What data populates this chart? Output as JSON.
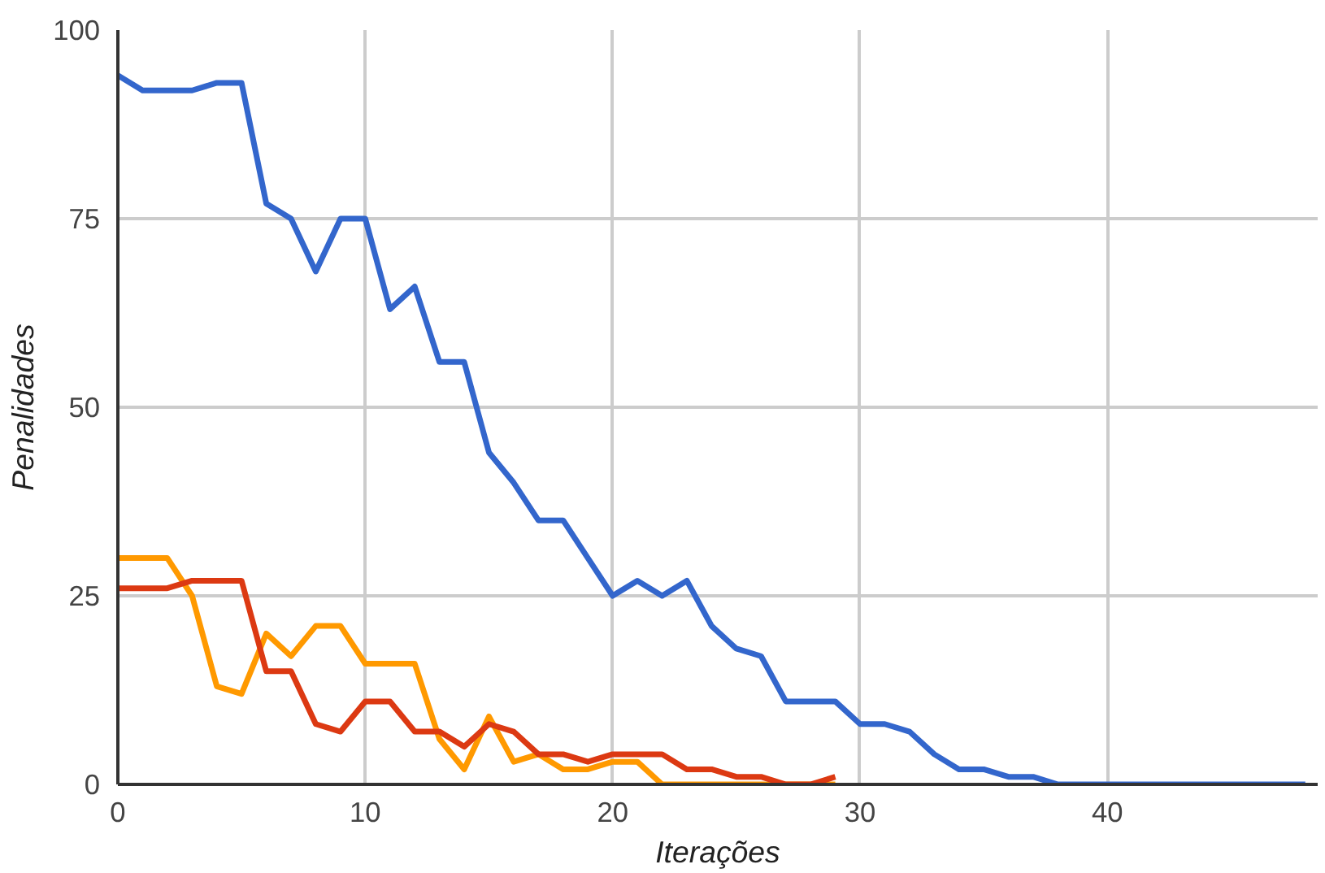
{
  "chart_data": {
    "type": "line",
    "xlabel": "Iterações",
    "ylabel": "Penalidades",
    "x": [
      0,
      1,
      2,
      3,
      4,
      5,
      6,
      7,
      8,
      9,
      10,
      11,
      12,
      13,
      14,
      15,
      16,
      17,
      18,
      19,
      20,
      21,
      22,
      23,
      24,
      25,
      26,
      27,
      28,
      29,
      30,
      31,
      32,
      33,
      34,
      35,
      36,
      37,
      38,
      39,
      40,
      41,
      42,
      43,
      44,
      45,
      46,
      47,
      48
    ],
    "series": [
      {
        "color": "#3366cc",
        "values": [
          94,
          92,
          92,
          92,
          93,
          93,
          77,
          75,
          68,
          75,
          75,
          63,
          66,
          56,
          56,
          44,
          40,
          35,
          35,
          30,
          25,
          27,
          25,
          27,
          21,
          18,
          17,
          11,
          11,
          11,
          8,
          8,
          7,
          4,
          2,
          2,
          1,
          1,
          0,
          0,
          0,
          0,
          0,
          0,
          0,
          0,
          0,
          0,
          0
        ]
      },
      {
        "color": "#ff9900",
        "values": [
          30,
          30,
          30,
          25,
          13,
          12,
          20,
          17,
          21,
          21,
          16,
          16,
          16,
          6,
          2,
          9,
          3,
          4,
          2,
          2,
          3,
          3,
          0,
          0,
          0,
          0,
          0,
          0,
          0,
          0,
          null,
          null,
          null,
          null,
          null,
          null,
          null,
          null,
          null,
          null,
          null,
          null,
          null,
          null,
          null,
          null,
          null,
          null,
          null
        ]
      },
      {
        "color": "#dc3912",
        "values": [
          26,
          26,
          26,
          27,
          27,
          27,
          15,
          15,
          8,
          7,
          11,
          11,
          7,
          7,
          5,
          8,
          7,
          4,
          4,
          3,
          4,
          4,
          4,
          2,
          2,
          1,
          1,
          0,
          0,
          1,
          null,
          null,
          null,
          null,
          null,
          null,
          null,
          null,
          null,
          null,
          null,
          null,
          null,
          null,
          null,
          null,
          null,
          null,
          null
        ]
      }
    ],
    "xlim": [
      0,
      48.5
    ],
    "ylim": [
      0,
      100
    ],
    "xticks": [
      0,
      10,
      20,
      30,
      40
    ],
    "yticks": [
      0,
      25,
      50,
      75,
      100
    ],
    "grid": true,
    "line_style": "solid"
  }
}
